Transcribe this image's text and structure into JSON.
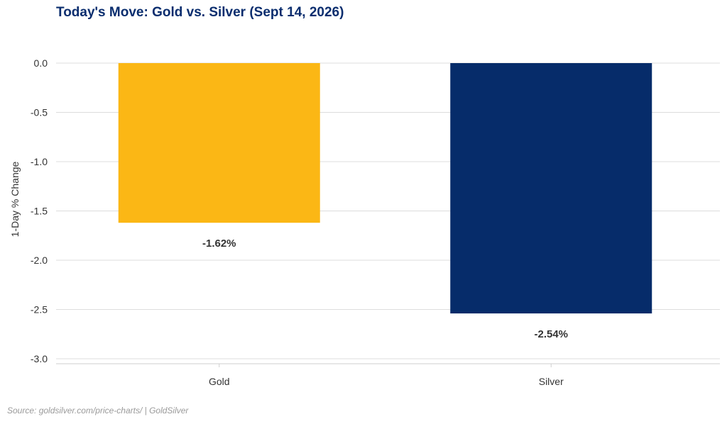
{
  "chart_data": {
    "type": "bar",
    "title": "Today's Move: Gold vs. Silver (Sept 14, 2026)",
    "xlabel": "",
    "ylabel": "1-Day % Change",
    "categories": [
      "Gold",
      "Silver"
    ],
    "values": [
      -1.62,
      -2.54
    ],
    "data_labels": [
      "-1.62%",
      "-2.54%"
    ],
    "colors": [
      "#FBB715",
      "#062C6A"
    ],
    "ylim": [
      -3.0,
      0.0
    ],
    "yticks": [
      0.0,
      -0.5,
      -1.0,
      -1.5,
      -2.0,
      -2.5,
      -3.0
    ],
    "ytick_labels": [
      "0.0",
      "-0.5",
      "-1.0",
      "-1.5",
      "-2.0",
      "-2.5",
      "-3.0"
    ],
    "grid": true,
    "legend": false
  },
  "source": "Source: goldsilver.com/price-charts/ | GoldSilver"
}
